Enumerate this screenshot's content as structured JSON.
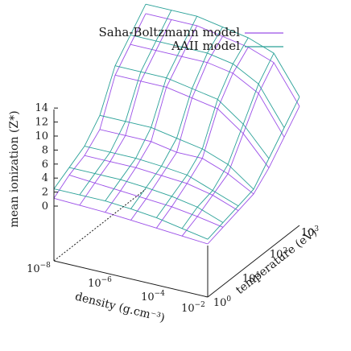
{
  "legend": {
    "items": [
      {
        "label": "Saha-Boltzmann model",
        "color": "#9b4fe8"
      },
      {
        "label": "AAII model",
        "color": "#2aa198"
      }
    ]
  },
  "axes": {
    "z_label": "mean ionization (Z*)",
    "x_label": "density (g.cm⁻³)",
    "y_label": "temperature (eV)",
    "z_ticks": [
      "0",
      "2",
      "4",
      "6",
      "8",
      "10",
      "12",
      "14"
    ],
    "x_ticks": [
      {
        "base": "10",
        "exp": "−8"
      },
      {
        "base": "10",
        "exp": "−6"
      },
      {
        "base": "10",
        "exp": "−4"
      },
      {
        "base": "10",
        "exp": "−2"
      }
    ],
    "y_ticks": [
      {
        "base": "10",
        "exp": "0"
      },
      {
        "base": "10",
        "exp": "1"
      },
      {
        "base": "10",
        "exp": "2"
      },
      {
        "base": "10",
        "exp": "3"
      }
    ]
  },
  "chart_data": {
    "type": "surface",
    "x_axis": {
      "label": "density (g.cm⁻³)",
      "scale": "log",
      "range": [
        1e-08,
        0.01
      ]
    },
    "y_axis": {
      "label": "temperature (eV)",
      "scale": "log",
      "range": [
        1,
        1000
      ]
    },
    "z_axis": {
      "label": "mean ionization (Z*)",
      "range": [
        0,
        14
      ]
    },
    "grid": false,
    "legend_position": "top-right",
    "series": [
      {
        "name": "Saha-Boltzmann model",
        "color": "#9b4fe8",
        "log10_density": [
          -8,
          -7,
          -6,
          -5,
          -4,
          -3,
          -2
        ],
        "log10_temperature": [
          0,
          0.5,
          1,
          1.5,
          2,
          2.5,
          3
        ],
        "mean_ionization": [
          [
            1.0,
            0.9,
            0.8,
            0.6,
            0.4,
            0.2,
            0.0
          ],
          [
            2.2,
            2.0,
            1.8,
            1.6,
            1.4,
            1.0,
            0.5
          ],
          [
            3.0,
            3.0,
            3.0,
            2.8,
            2.6,
            2.0,
            1.0
          ],
          [
            4.5,
            4.5,
            4.5,
            4.0,
            4.0,
            3.0,
            1.5
          ],
          [
            9.0,
            9.0,
            9.0,
            8.5,
            8.0,
            6.0,
            3.0
          ],
          [
            11.0,
            11.0,
            11.0,
            11.0,
            10.5,
            9.0,
            5.0
          ],
          [
            13.0,
            13.0,
            13.0,
            12.5,
            12.0,
            11.0,
            7.0
          ]
        ]
      },
      {
        "name": "AAII model",
        "color": "#2aa198",
        "log10_density": [
          -8,
          -7,
          -6,
          -5,
          -4,
          -3,
          -2
        ],
        "log10_temperature": [
          0,
          0.5,
          1,
          1.5,
          2,
          2.5,
          3
        ],
        "mean_ionization": [
          [
            2.0,
            2.0,
            2.0,
            1.8,
            1.5,
            1.0,
            0.5
          ],
          [
            3.0,
            3.0,
            3.0,
            2.8,
            2.5,
            2.0,
            1.0
          ],
          [
            4.0,
            4.0,
            4.0,
            3.8,
            3.5,
            2.5,
            1.5
          ],
          [
            6.0,
            6.0,
            6.0,
            5.5,
            5.0,
            4.0,
            2.0
          ],
          [
            10.0,
            10.0,
            10.0,
            9.5,
            9.0,
            7.0,
            4.0
          ],
          [
            12.0,
            12.0,
            12.0,
            12.0,
            11.5,
            10.0,
            6.0
          ],
          [
            14.0,
            14.0,
            14.0,
            13.5,
            13.0,
            12.0,
            8.0
          ]
        ]
      }
    ]
  }
}
